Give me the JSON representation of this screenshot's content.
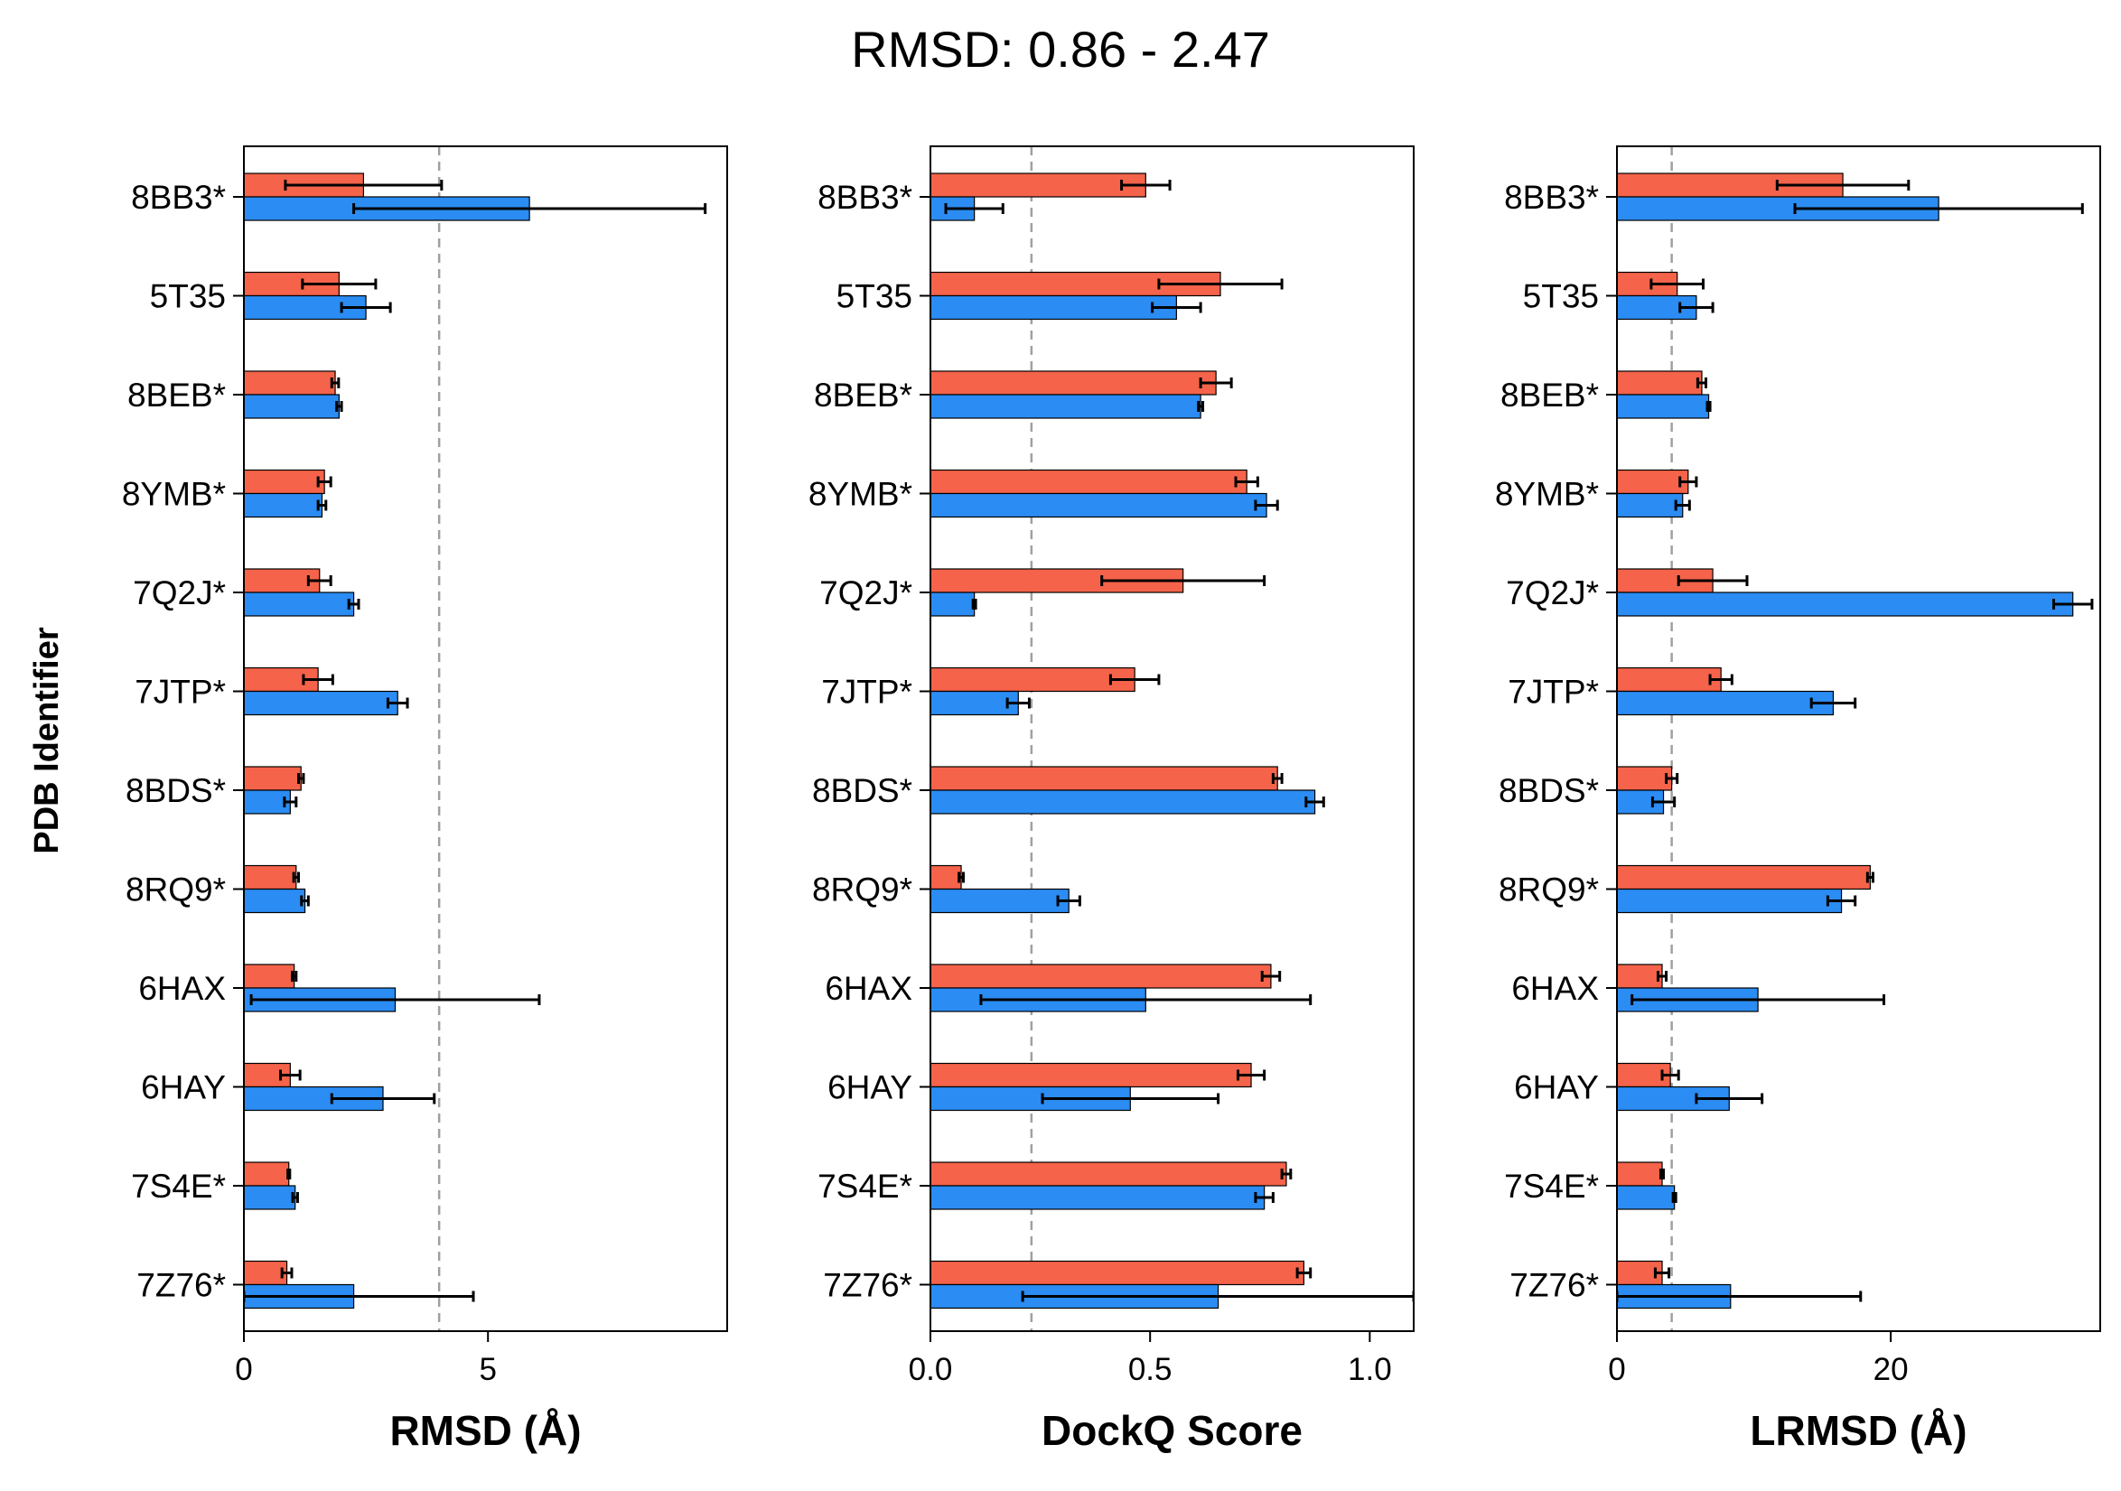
{
  "figure": {
    "suptitle": "RMSD: 0.86 - 2.47",
    "ylabel": "PDB Identifier"
  },
  "colors": {
    "series_a": "#f4634a",
    "series_b": "#2b8cf3",
    "refline": "#a0a0a0"
  },
  "chart_data": [
    {
      "type": "bar",
      "orientation": "horizontal",
      "xlabel": "RMSD (Å)",
      "xlim": [
        0,
        9.9
      ],
      "xticks": [
        0,
        5
      ],
      "reference_line": 4.0,
      "categories": [
        "8BB3*",
        "5T35",
        "8BEB*",
        "8YMB*",
        "7Q2J*",
        "7JTP*",
        "8BDS*",
        "8RQ9*",
        "6HAX",
        "6HAY",
        "7S4E*",
        "7Z76*"
      ],
      "series": [
        {
          "color": "#f4634a",
          "values": [
            2.45,
            1.95,
            1.87,
            1.65,
            1.55,
            1.52,
            1.17,
            1.07,
            1.03,
            0.95,
            0.92,
            0.88
          ],
          "errors": [
            1.6,
            0.75,
            0.07,
            0.13,
            0.23,
            0.3,
            0.05,
            0.05,
            0.04,
            0.2,
            0.02,
            0.1
          ]
        },
        {
          "color": "#2b8cf3",
          "values": [
            5.85,
            2.5,
            1.95,
            1.6,
            2.25,
            3.15,
            0.95,
            1.25,
            3.1,
            2.85,
            1.05,
            2.25
          ],
          "errors": [
            3.6,
            0.5,
            0.05,
            0.08,
            0.1,
            0.2,
            0.12,
            0.07,
            2.95,
            1.05,
            0.05,
            2.45
          ]
        }
      ]
    },
    {
      "type": "bar",
      "orientation": "horizontal",
      "xlabel": "DockQ Score",
      "xlim": [
        0,
        1.1
      ],
      "xticks": [
        "0.0",
        "0.5",
        "1.0"
      ],
      "reference_line": 0.23,
      "categories": [
        "8BB3*",
        "5T35",
        "8BEB*",
        "8YMB*",
        "7Q2J*",
        "7JTP*",
        "8BDS*",
        "8RQ9*",
        "6HAX",
        "6HAY",
        "7S4E*",
        "7Z76*"
      ],
      "series": [
        {
          "color": "#f4634a",
          "values": [
            0.49,
            0.66,
            0.65,
            0.72,
            0.575,
            0.465,
            0.79,
            0.07,
            0.775,
            0.73,
            0.81,
            0.85
          ],
          "errors": [
            0.055,
            0.14,
            0.035,
            0.025,
            0.185,
            0.055,
            0.01,
            0.005,
            0.02,
            0.03,
            0.01,
            0.015
          ]
        },
        {
          "color": "#2b8cf3",
          "values": [
            0.1,
            0.56,
            0.615,
            0.765,
            0.1,
            0.2,
            0.875,
            0.315,
            0.49,
            0.455,
            0.76,
            0.655
          ],
          "errors": [
            0.065,
            0.055,
            0.005,
            0.025,
            0.003,
            0.025,
            0.02,
            0.025,
            0.375,
            0.2,
            0.02,
            0.445
          ]
        }
      ]
    },
    {
      "type": "bar",
      "orientation": "horizontal",
      "xlabel": "LRMSD (Å)",
      "xlim": [
        0,
        35.3
      ],
      "xticks": [
        0,
        20
      ],
      "reference_line": 4.0,
      "categories": [
        "8BB3*",
        "5T35",
        "8BEB*",
        "8YMB*",
        "7Q2J*",
        "7JTP*",
        "8BDS*",
        "8RQ9*",
        "6HAX",
        "6HAY",
        "7S4E*",
        "7Z76*"
      ],
      "series": [
        {
          "color": "#f4634a",
          "values": [
            16.5,
            4.4,
            6.2,
            5.2,
            7.0,
            7.6,
            4.0,
            18.5,
            3.3,
            3.9,
            3.3,
            3.3
          ],
          "errors": [
            4.8,
            1.9,
            0.3,
            0.6,
            2.5,
            0.8,
            0.4,
            0.2,
            0.3,
            0.6,
            0.1,
            0.5
          ]
        },
        {
          "color": "#2b8cf3",
          "values": [
            23.5,
            5.8,
            6.7,
            4.8,
            33.3,
            15.8,
            3.4,
            16.4,
            10.3,
            8.2,
            4.2,
            8.3
          ],
          "errors": [
            10.5,
            1.2,
            0.1,
            0.5,
            1.4,
            1.6,
            0.8,
            1.0,
            9.2,
            2.4,
            0.1,
            9.5
          ]
        }
      ]
    }
  ]
}
